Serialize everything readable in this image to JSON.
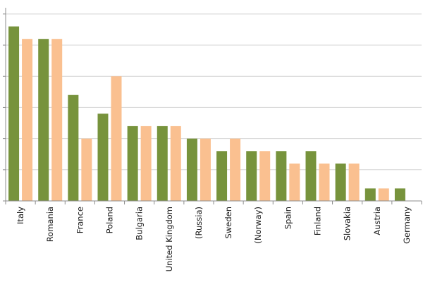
{
  "chart_data": {
    "type": "bar",
    "categories": [
      "Italy",
      "Romania",
      "France",
      "Poland",
      "Bulgaria",
      "United Kingdom",
      "(Russia)",
      "Sweden",
      "(Norway)",
      "Spain",
      "Finland",
      "Slovakia",
      "Austria",
      "Germany"
    ],
    "series": [
      {
        "values": [
          14,
          13,
          8.5,
          7,
          6,
          6,
          5,
          4,
          4,
          4,
          4,
          3,
          1,
          1
        ],
        "color": "#77933c"
      },
      {
        "values": [
          13,
          13,
          5,
          10,
          6,
          6,
          5,
          5,
          4,
          3,
          3,
          3,
          1,
          null
        ],
        "color": "#fac090"
      }
    ],
    "ylim": [
      0,
      15.5
    ],
    "yticks": [
      0,
      2.5,
      5,
      7.5,
      10,
      12.5,
      15
    ],
    "grid": true,
    "xlabel": "",
    "ylabel": "",
    "title": ""
  }
}
